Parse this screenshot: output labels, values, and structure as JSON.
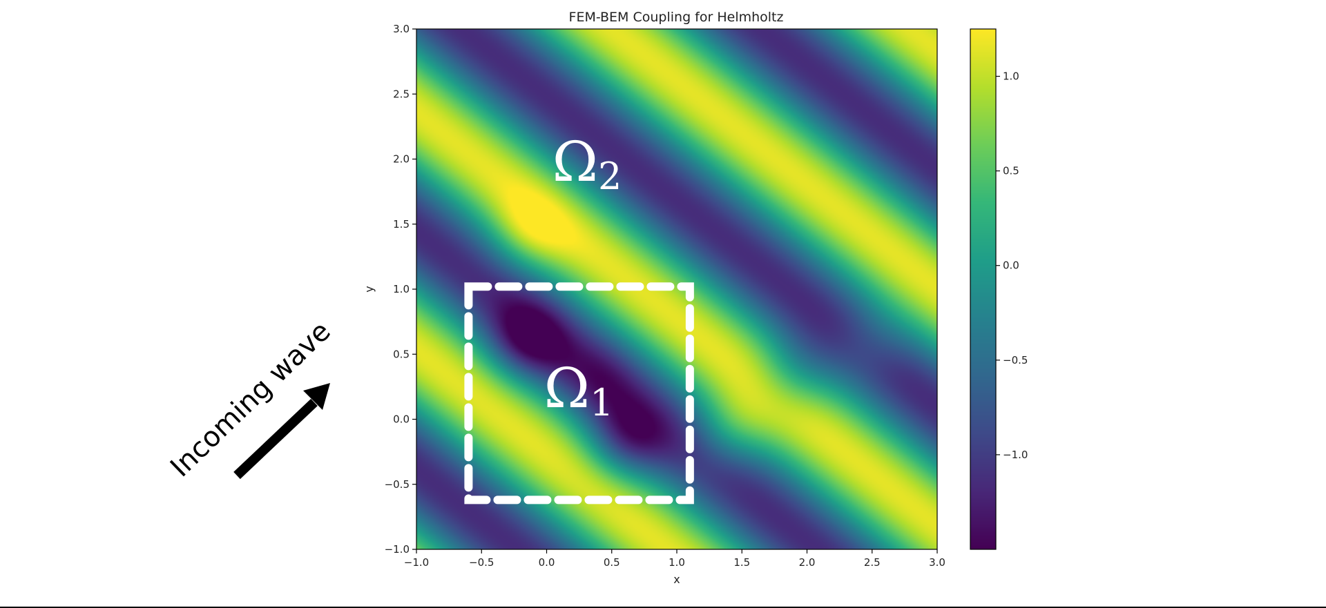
{
  "chart_data": {
    "type": "heatmap",
    "title": "FEM-BEM Coupling for Helmholtz",
    "xlabel": "x",
    "ylabel": "y",
    "xlim": [
      -1.0,
      3.0
    ],
    "ylim": [
      -1.0,
      3.0
    ],
    "x_ticks": [
      "−1.0",
      "−0.5",
      "0.0",
      "0.5",
      "1.0",
      "1.5",
      "2.0",
      "2.5",
      "3.0"
    ],
    "y_ticks": [
      "−1.0",
      "−0.5",
      "0.0",
      "0.5",
      "1.0",
      "1.5",
      "2.0",
      "2.5",
      "3.0"
    ],
    "colormap": "viridis",
    "colorbar": {
      "range": [
        -1.5,
        1.25
      ],
      "ticks": [
        1.0,
        0.5,
        0.0,
        -0.5,
        -1.0
      ],
      "tick_labels": [
        "1.0",
        "0.5",
        "0.0",
        "−0.5",
        "−1.0"
      ]
    },
    "field": {
      "description": "plane-wave interference pattern, bands running upper-left to lower-right"
    },
    "fem_region": {
      "x0": -0.6,
      "x1": 1.1,
      "y0": -0.62,
      "y1": 1.02,
      "color": "#ffffff",
      "style": "dashed"
    },
    "labels": {
      "omega_inner_base": "Ω",
      "omega_inner_sub": "1",
      "omega_outer_base": "Ω",
      "omega_outer_sub": "2"
    },
    "annotation": {
      "text": "Incoming wave",
      "arrow_color": "#000000"
    }
  }
}
